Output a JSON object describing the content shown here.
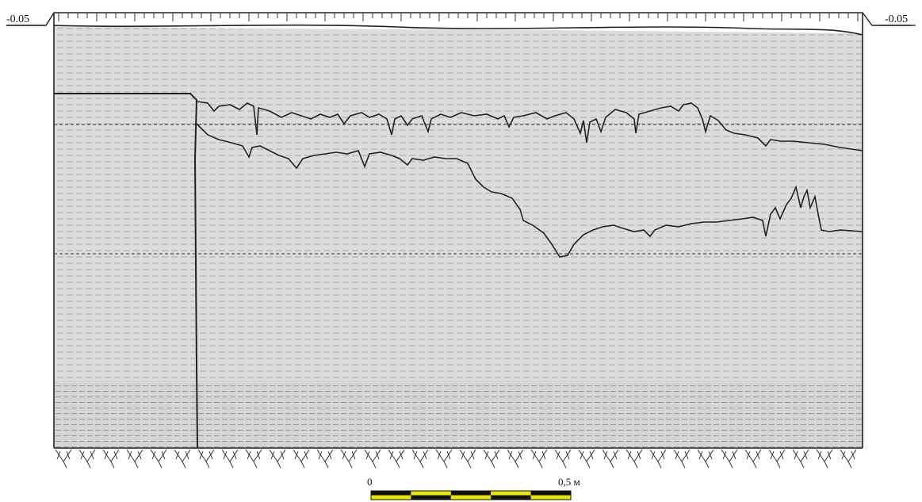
{
  "drawing": {
    "level_left": "-0.05",
    "level_right": "-0.05",
    "scale_bar": {
      "start_label": "0",
      "end_label": "0,5 м",
      "segments": 5,
      "colors": [
        "#111111",
        "#e6e600"
      ]
    },
    "colors": {
      "line": "#222222",
      "fill": "#d9d9d9",
      "hatch": "#9a9a9a",
      "background": "#ffffff"
    }
  }
}
